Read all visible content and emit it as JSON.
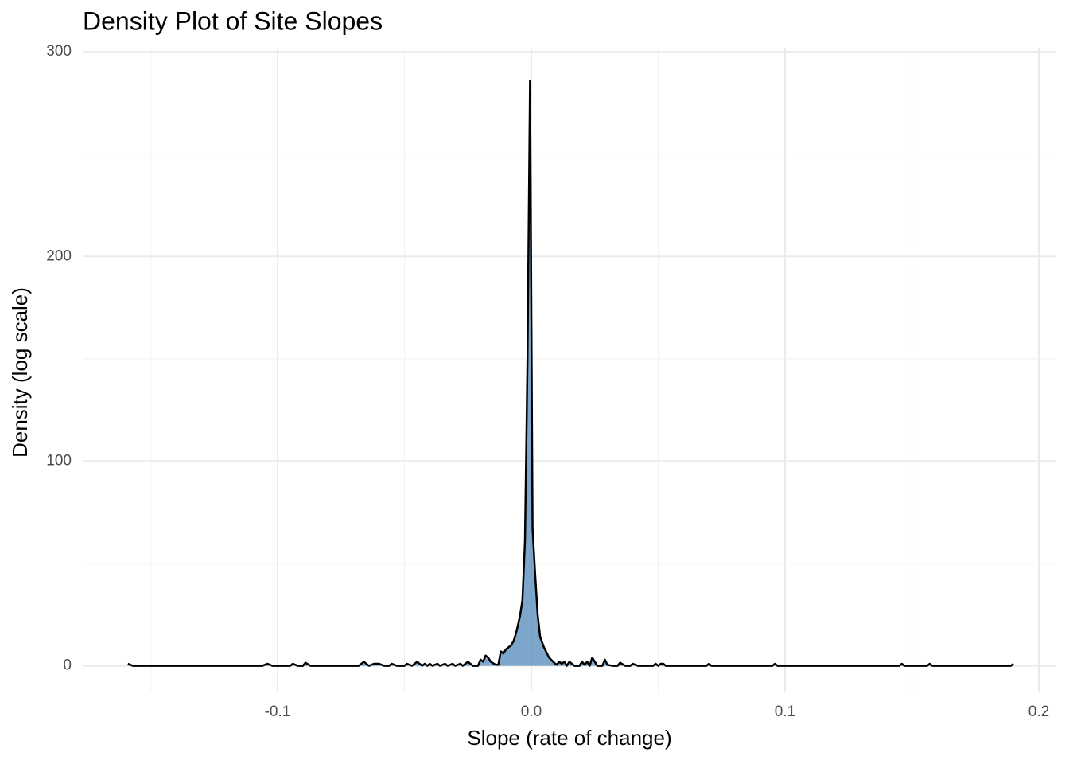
{
  "chart_data": {
    "type": "area",
    "title": "Density Plot of Site Slopes",
    "x_label": "Slope (rate of change)",
    "y_label": "Density (log scale)",
    "fill": "#4682b4",
    "fill_opacity": 0.7,
    "line_color": "#000000",
    "xlim": [
      -0.1768,
      0.2069
    ],
    "ylim": [
      -13,
      302
    ],
    "xticks": [
      {
        "value": -0.1,
        "label": "-0.1"
      },
      {
        "value": 0,
        "label": "0.0"
      },
      {
        "value": 0.1,
        "label": "0.1"
      },
      {
        "value": 0.2,
        "label": "0.2"
      }
    ],
    "yticks": [
      0,
      100,
      200,
      300
    ],
    "x_minor_grid": [
      -0.15,
      -0.05,
      0.05,
      0.15
    ],
    "y_minor_grid": [
      50,
      150,
      250
    ],
    "grid": true,
    "x": [
      -0.159,
      -0.157,
      -0.106,
      -0.104,
      -0.102,
      -0.095,
      -0.094,
      -0.092,
      -0.09,
      -0.089,
      -0.087,
      -0.068,
      -0.066,
      -0.064,
      -0.062,
      -0.06,
      -0.058,
      -0.056,
      -0.055,
      -0.053,
      -0.05,
      -0.049,
      -0.047,
      -0.045,
      -0.043,
      -0.042,
      -0.041,
      -0.04,
      -0.039,
      -0.037,
      -0.036,
      -0.034,
      -0.033,
      -0.031,
      -0.03,
      -0.028,
      -0.027,
      -0.025,
      -0.023,
      -0.021,
      -0.02,
      -0.019,
      -0.018,
      -0.017,
      -0.016,
      -0.014,
      -0.013,
      -0.012,
      -0.011,
      -0.01,
      -0.008,
      -0.007,
      -0.006,
      -0.0045,
      -0.0035,
      -0.0025,
      -0.0015,
      -0.0005,
      0.0005,
      0.0015,
      0.0025,
      0.0035,
      0.005,
      0.007,
      0.009,
      0.01,
      0.011,
      0.012,
      0.013,
      0.014,
      0.015,
      0.016,
      0.017,
      0.019,
      0.02,
      0.021,
      0.022,
      0.023,
      0.024,
      0.025,
      0.026,
      0.028,
      0.029,
      0.03,
      0.032,
      0.034,
      0.035,
      0.037,
      0.039,
      0.04,
      0.042,
      0.048,
      0.049,
      0.05,
      0.051,
      0.052,
      0.053,
      0.069,
      0.07,
      0.071,
      0.095,
      0.096,
      0.097,
      0.145,
      0.146,
      0.147,
      0.156,
      0.157,
      0.158,
      0.189,
      0.19
    ],
    "values": [
      1,
      0,
      0,
      1,
      0,
      0,
      1,
      0,
      0,
      1.5,
      0,
      0,
      2,
      0,
      1,
      1,
      0,
      0,
      1,
      0,
      0,
      1,
      0,
      2,
      0,
      1,
      0,
      1,
      0,
      1,
      0,
      1,
      0,
      1,
      0,
      1,
      0,
      2,
      0,
      0,
      3,
      2,
      5,
      4,
      2,
      0.5,
      0.5,
      7,
      6,
      8,
      10,
      12,
      16,
      24,
      32,
      61,
      150,
      286,
      67,
      45,
      25,
      14,
      9,
      4,
      1.5,
      0.5,
      2,
      1,
      2,
      0,
      2,
      1,
      0,
      0,
      2,
      0.5,
      2,
      0,
      4,
      2,
      0,
      0,
      3,
      0.5,
      0,
      0,
      1.5,
      0,
      0,
      1,
      0,
      0,
      1,
      0,
      1,
      1,
      0,
      0,
      1,
      0,
      0,
      1,
      0,
      0,
      1,
      0,
      0,
      1,
      0,
      0,
      1
    ]
  }
}
